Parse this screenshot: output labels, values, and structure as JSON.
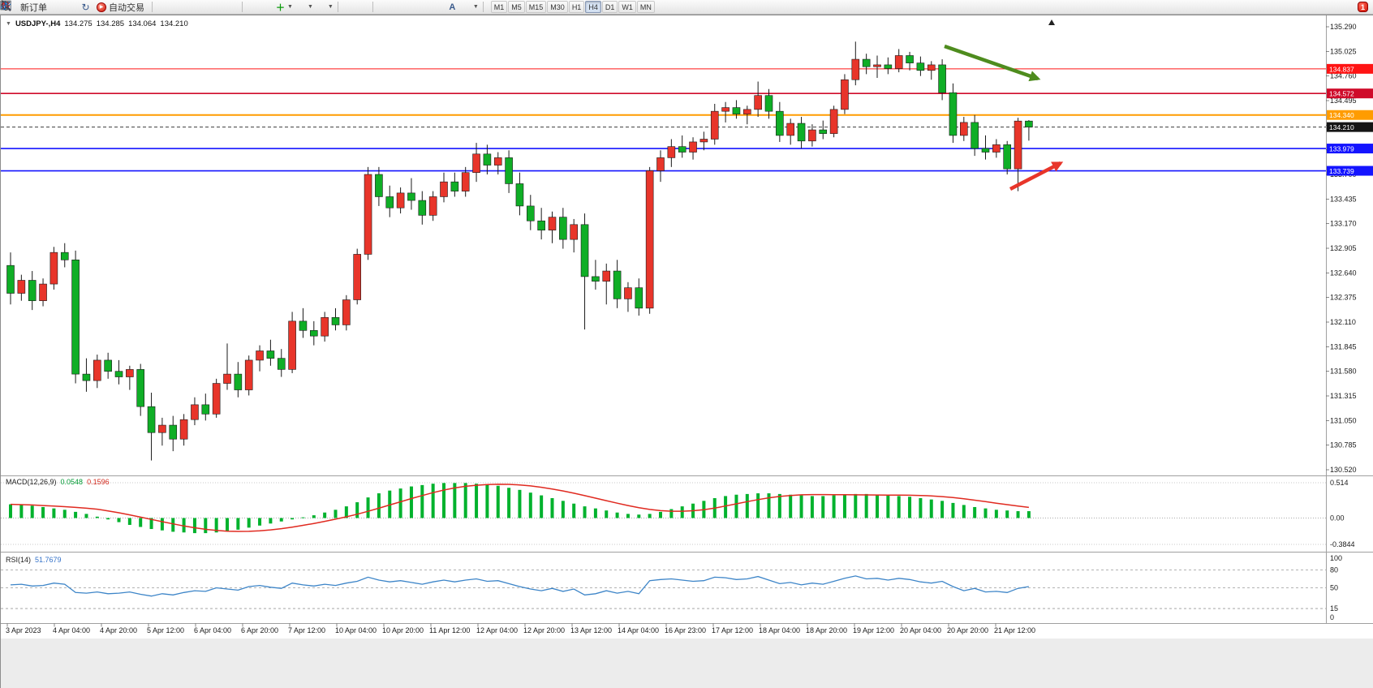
{
  "toolbar": {
    "new_order_label": "新订单",
    "auto_trading_label": "自动交易",
    "text_tool_label": "A",
    "timeframes": [
      "M1",
      "M5",
      "M15",
      "M30",
      "H1",
      "H4",
      "D1",
      "W1",
      "MN"
    ],
    "active_timeframe": "H4",
    "notification_badge": "1"
  },
  "chart_header": {
    "expander": "▼",
    "symbol": "USDJPY-,H4",
    "open": "134.275",
    "high": "134.285",
    "low": "134.064",
    "close": "134.210"
  },
  "price_axis": {
    "ticks": [
      "135.290",
      "135.025",
      "134.760",
      "134.495",
      "134.230",
      "133.965",
      "133.700",
      "133.435",
      "133.170",
      "132.905",
      "132.640",
      "132.375",
      "132.110",
      "131.845",
      "131.580",
      "131.315",
      "131.050",
      "130.785",
      "130.520"
    ]
  },
  "time_axis": {
    "labels": [
      "3 Apr 2023",
      "4 Apr 04:00",
      "4 Apr 20:00",
      "5 Apr 12:00",
      "6 Apr 04:00",
      "6 Apr 20:00",
      "7 Apr 12:00",
      "10 Apr 04:00",
      "10 Apr 20:00",
      "11 Apr 12:00",
      "12 Apr 04:00",
      "12 Apr 20:00",
      "13 Apr 12:00",
      "14 Apr 04:00",
      "16 Apr 23:00",
      "17 Apr 12:00",
      "18 Apr 04:00",
      "18 Apr 20:00",
      "19 Apr 12:00",
      "20 Apr 04:00",
      "20 Apr 20:00",
      "21 Apr 12:00"
    ]
  },
  "indicators": {
    "macd": {
      "name": "MACD(12,26,9)",
      "value1": "0.0548",
      "value2": "0.1596",
      "scale_top": "0.514",
      "scale_mid": "0.00",
      "scale_bottom": "-0.3844"
    },
    "rsi": {
      "name": "RSI(14)",
      "value": "51.7679",
      "scale": [
        "100",
        "80",
        "50",
        "15",
        "0"
      ],
      "levels": [
        80,
        50,
        15
      ]
    }
  },
  "chart_data": {
    "type": "candlestick",
    "title": "USDJPY- H4",
    "up_color": "#e8352a",
    "down_color": "#0fae26",
    "wick_color": "#1a1a1a",
    "price_range": {
      "top_price": 135.29,
      "bottom_price": 130.52
    },
    "candles": [
      [
        132.72,
        132.86,
        132.3,
        132.42
      ],
      [
        132.42,
        132.62,
        132.34,
        132.56
      ],
      [
        132.56,
        132.66,
        132.24,
        132.34
      ],
      [
        132.34,
        132.58,
        132.28,
        132.52
      ],
      [
        132.52,
        132.92,
        132.46,
        132.86
      ],
      [
        132.86,
        132.96,
        132.7,
        132.78
      ],
      [
        132.78,
        132.88,
        131.45,
        131.55
      ],
      [
        131.55,
        131.72,
        131.36,
        131.48
      ],
      [
        131.48,
        131.76,
        131.4,
        131.7
      ],
      [
        131.7,
        131.78,
        131.5,
        131.58
      ],
      [
        131.58,
        131.7,
        131.44,
        131.52
      ],
      [
        131.52,
        131.64,
        131.38,
        131.6
      ],
      [
        131.6,
        131.66,
        131.1,
        131.2
      ],
      [
        131.2,
        131.35,
        130.62,
        130.92
      ],
      [
        130.92,
        131.08,
        130.78,
        131.0
      ],
      [
        131.0,
        131.1,
        130.72,
        130.85
      ],
      [
        130.85,
        131.12,
        130.78,
        131.06
      ],
      [
        131.06,
        131.3,
        131.0,
        131.22
      ],
      [
        131.22,
        131.34,
        131.05,
        131.12
      ],
      [
        131.12,
        131.5,
        131.08,
        131.45
      ],
      [
        131.45,
        131.88,
        131.38,
        131.55
      ],
      [
        131.55,
        131.68,
        131.3,
        131.38
      ],
      [
        131.38,
        131.75,
        131.32,
        131.7
      ],
      [
        131.7,
        131.86,
        131.58,
        131.8
      ],
      [
        131.8,
        131.92,
        131.64,
        131.72
      ],
      [
        131.72,
        131.82,
        131.52,
        131.6
      ],
      [
        131.6,
        132.22,
        131.56,
        132.12
      ],
      [
        132.12,
        132.26,
        131.94,
        132.02
      ],
      [
        132.02,
        132.12,
        131.86,
        131.96
      ],
      [
        131.96,
        132.22,
        131.9,
        132.16
      ],
      [
        132.16,
        132.26,
        132.02,
        132.08
      ],
      [
        132.08,
        132.4,
        132.02,
        132.35
      ],
      [
        132.35,
        132.9,
        132.3,
        132.84
      ],
      [
        132.84,
        133.78,
        132.78,
        133.7
      ],
      [
        133.7,
        133.78,
        133.36,
        133.46
      ],
      [
        133.46,
        133.58,
        133.24,
        133.34
      ],
      [
        133.34,
        133.56,
        133.28,
        133.5
      ],
      [
        133.5,
        133.66,
        133.32,
        133.42
      ],
      [
        133.42,
        133.52,
        133.16,
        133.26
      ],
      [
        133.26,
        133.52,
        133.2,
        133.46
      ],
      [
        133.46,
        133.72,
        133.4,
        133.62
      ],
      [
        133.62,
        133.72,
        133.46,
        133.52
      ],
      [
        133.52,
        133.78,
        133.46,
        133.72
      ],
      [
        133.72,
        134.04,
        133.62,
        133.92
      ],
      [
        133.92,
        134.02,
        133.7,
        133.8
      ],
      [
        133.8,
        133.94,
        133.7,
        133.88
      ],
      [
        133.88,
        133.96,
        133.5,
        133.6
      ],
      [
        133.6,
        133.72,
        133.26,
        133.36
      ],
      [
        133.36,
        133.48,
        133.1,
        133.2
      ],
      [
        133.2,
        133.34,
        133.0,
        133.1
      ],
      [
        133.1,
        133.3,
        132.96,
        133.24
      ],
      [
        133.24,
        133.34,
        132.9,
        133.0
      ],
      [
        133.0,
        133.22,
        132.86,
        133.16
      ],
      [
        133.16,
        133.28,
        132.03,
        132.6
      ],
      [
        132.6,
        132.78,
        132.46,
        132.55
      ],
      [
        132.55,
        132.74,
        132.3,
        132.66
      ],
      [
        132.66,
        132.78,
        132.26,
        132.36
      ],
      [
        132.36,
        132.54,
        132.22,
        132.48
      ],
      [
        132.48,
        132.58,
        132.18,
        132.26
      ],
      [
        132.26,
        133.78,
        132.2,
        133.74
      ],
      [
        133.74,
        133.96,
        133.62,
        133.88
      ],
      [
        133.88,
        134.08,
        133.78,
        134.0
      ],
      [
        134.0,
        134.12,
        133.88,
        133.94
      ],
      [
        133.94,
        134.1,
        133.86,
        134.05
      ],
      [
        134.05,
        134.16,
        133.96,
        134.08
      ],
      [
        134.08,
        134.46,
        134.02,
        134.38
      ],
      [
        134.38,
        134.48,
        134.26,
        134.42
      ],
      [
        134.42,
        134.5,
        134.3,
        134.35
      ],
      [
        134.35,
        134.44,
        134.24,
        134.4
      ],
      [
        134.4,
        134.7,
        134.32,
        134.55
      ],
      [
        134.55,
        134.62,
        134.3,
        134.38
      ],
      [
        134.38,
        134.48,
        134.05,
        134.12
      ],
      [
        134.12,
        134.3,
        134.02,
        134.25
      ],
      [
        134.25,
        134.32,
        133.98,
        134.06
      ],
      [
        134.06,
        134.24,
        134.0,
        134.18
      ],
      [
        134.18,
        134.28,
        134.08,
        134.14
      ],
      [
        134.14,
        134.44,
        134.1,
        134.4
      ],
      [
        134.4,
        134.78,
        134.35,
        134.72
      ],
      [
        134.72,
        135.13,
        134.66,
        134.94
      ],
      [
        134.94,
        135.0,
        134.78,
        134.86
      ],
      [
        134.86,
        134.98,
        134.74,
        134.88
      ],
      [
        134.88,
        134.96,
        134.78,
        134.84
      ],
      [
        134.84,
        135.05,
        134.8,
        134.98
      ],
      [
        134.98,
        135.02,
        134.82,
        134.9
      ],
      [
        134.9,
        134.97,
        134.76,
        134.82
      ],
      [
        134.82,
        134.92,
        134.72,
        134.88
      ],
      [
        134.88,
        134.94,
        134.5,
        134.58
      ],
      [
        134.58,
        134.68,
        134.04,
        134.12
      ],
      [
        134.12,
        134.32,
        134.06,
        134.26
      ],
      [
        134.26,
        134.34,
        133.9,
        133.98
      ],
      [
        133.98,
        134.12,
        133.86,
        133.94
      ],
      [
        133.94,
        134.08,
        133.88,
        134.02
      ],
      [
        134.02,
        134.06,
        133.7,
        133.76
      ],
      [
        133.76,
        134.31,
        133.52,
        134.275
      ],
      [
        134.275,
        134.285,
        134.064,
        134.21
      ]
    ],
    "hlines": [
      {
        "price": 134.837,
        "label": "134.837",
        "color": "#ff1414",
        "width": 1
      },
      {
        "price": 134.572,
        "label": "134.572",
        "color": "#cf0b2a",
        "width": 1.6
      },
      {
        "price": 134.34,
        "label": "134.340",
        "color": "#ff9c00",
        "width": 2
      },
      {
        "price": 134.21,
        "label": "134.210",
        "color": "#3c3c3c",
        "width": 1,
        "dash": "4 3",
        "current": true
      },
      {
        "price": 133.979,
        "label": "133.979",
        "color": "#1414ff",
        "width": 1.6
      },
      {
        "price": 133.739,
        "label": "133.739",
        "color": "#1414ff",
        "width": 1.6
      }
    ],
    "annotations": [
      {
        "name": "down-trend-arrow",
        "color": "#4e8c1e",
        "from": [
          1163,
          56
        ],
        "to": [
          1278,
          96
        ]
      },
      {
        "name": "up-trend-arrow",
        "color": "#e8352a",
        "from": [
          1244,
          232
        ],
        "to": [
          1306,
          200
        ]
      }
    ],
    "macd_histogram": [
      0.2,
      0.19,
      0.18,
      0.16,
      0.14,
      0.12,
      0.09,
      0.06,
      0.02,
      -0.02,
      -0.06,
      -0.1,
      -0.13,
      -0.16,
      -0.18,
      -0.2,
      -0.21,
      -0.22,
      -0.22,
      -0.21,
      -0.19,
      -0.17,
      -0.14,
      -0.11,
      -0.08,
      -0.05,
      -0.02,
      0.01,
      0.04,
      0.08,
      0.12,
      0.17,
      0.23,
      0.3,
      0.36,
      0.4,
      0.43,
      0.46,
      0.48,
      0.5,
      0.51,
      0.51,
      0.51,
      0.5,
      0.49,
      0.47,
      0.44,
      0.41,
      0.37,
      0.33,
      0.29,
      0.25,
      0.21,
      0.17,
      0.14,
      0.11,
      0.08,
      0.06,
      0.05,
      0.06,
      0.09,
      0.13,
      0.17,
      0.21,
      0.25,
      0.29,
      0.32,
      0.34,
      0.35,
      0.36,
      0.36,
      0.35,
      0.34,
      0.33,
      0.32,
      0.32,
      0.33,
      0.34,
      0.35,
      0.35,
      0.34,
      0.33,
      0.32,
      0.31,
      0.29,
      0.27,
      0.25,
      0.22,
      0.19,
      0.16,
      0.14,
      0.12,
      0.11,
      0.1,
      0.1
    ],
    "rsi_line": [
      55,
      56,
      53,
      54,
      58,
      56,
      42,
      41,
      43,
      40,
      41,
      43,
      39,
      36,
      40,
      38,
      42,
      45,
      44,
      50,
      48,
      46,
      52,
      54,
      51,
      49,
      58,
      55,
      53,
      56,
      54,
      58,
      61,
      68,
      63,
      60,
      62,
      59,
      56,
      60,
      63,
      60,
      63,
      65,
      61,
      62,
      57,
      52,
      48,
      45,
      49,
      44,
      48,
      38,
      40,
      45,
      41,
      44,
      40,
      62,
      64,
      65,
      63,
      61,
      62,
      68,
      67,
      64,
      65,
      69,
      63,
      57,
      59,
      55,
      58,
      56,
      61,
      66,
      70,
      65,
      66,
      63,
      66,
      64,
      60,
      58,
      61,
      52,
      45,
      49,
      43,
      44,
      42,
      49,
      52
    ]
  }
}
